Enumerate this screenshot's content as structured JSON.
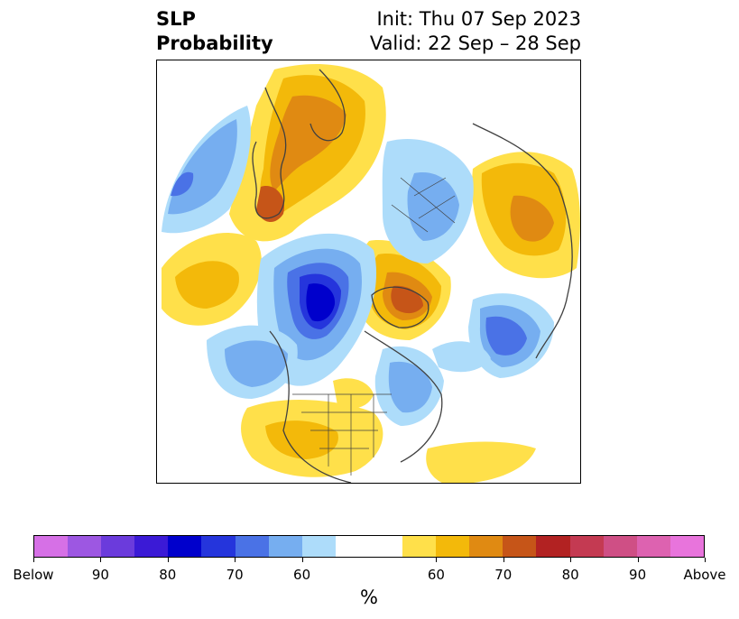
{
  "title": {
    "left_line1": "SLP",
    "left_line2": "Probability",
    "right_line1": "Init: Thu 07 Sep 2023",
    "right_line2": "Valid: 22 Sep – 28 Sep"
  },
  "colorbar": {
    "colors": [
      "#d670e6",
      "#9d57e2",
      "#6b3bdc",
      "#3b1ad6",
      "#0000cc",
      "#2535dc",
      "#4a72e6",
      "#76aef0",
      "#addcfa",
      "#ffffff",
      "#ffffff",
      "#ffe04a",
      "#f3b90a",
      "#e08a12",
      "#c65518",
      "#b22222",
      "#c43a52",
      "#cf4f85",
      "#dd62b0",
      "#e874dc"
    ],
    "labels": [
      "Below",
      "90",
      "80",
      "70",
      "60",
      "60",
      "70",
      "80",
      "90",
      "Above"
    ],
    "unit": "%"
  }
}
